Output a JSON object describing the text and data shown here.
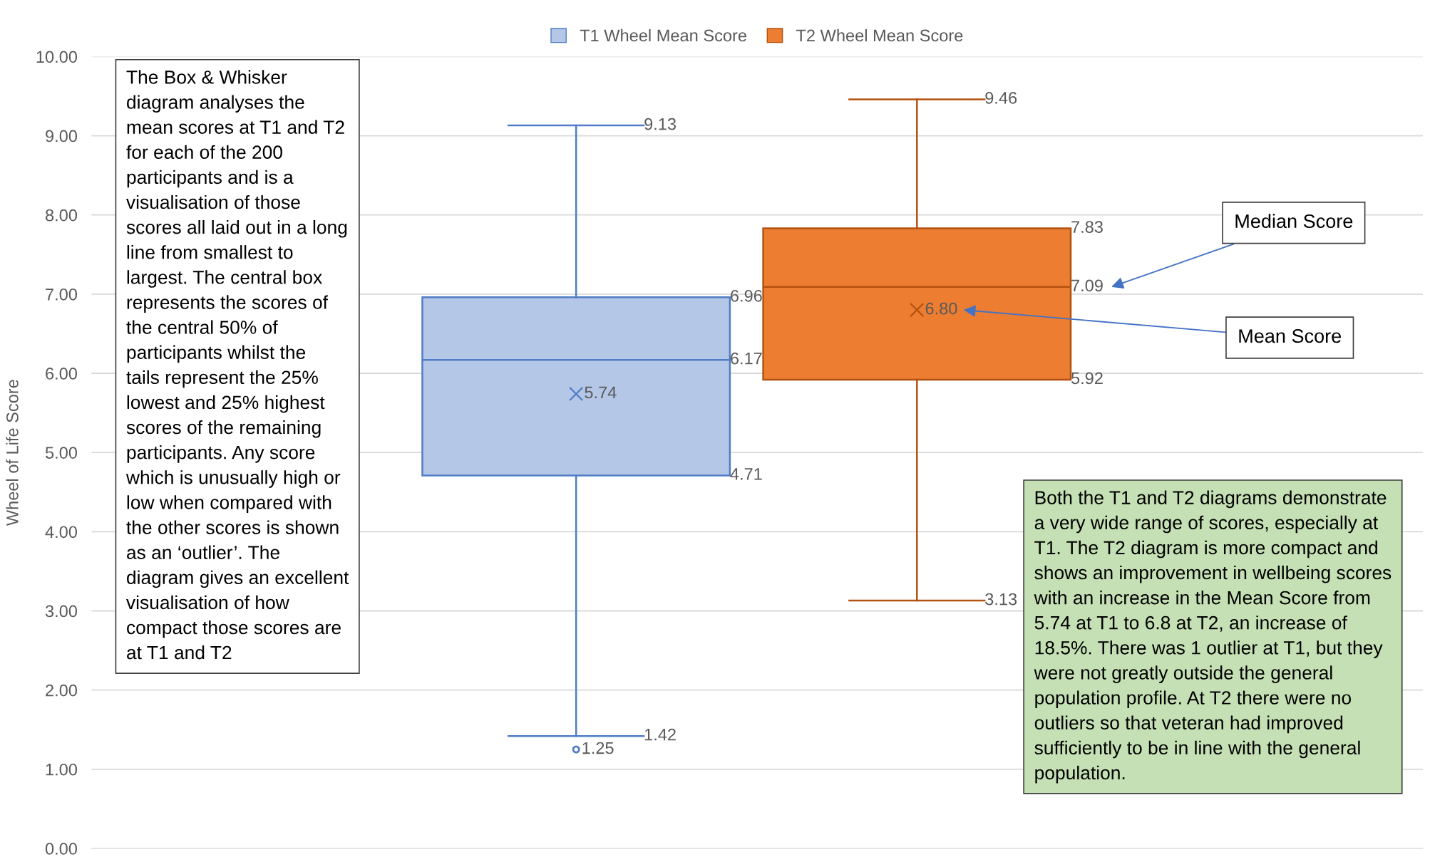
{
  "chart_data": {
    "type": "box",
    "ylabel": "Wheel of Life Score",
    "categories": [
      null
    ],
    "series": [
      {
        "name": "T1 Wheel Mean Score",
        "color": "#b4c7e7",
        "boxes": [
          {
            "low": 1.42,
            "q1": 4.71,
            "median": 6.17,
            "q3": 6.96,
            "high": 9.13,
            "mean": 5.74,
            "outliers": [
              1.25
            ]
          }
        ]
      },
      {
        "name": "T2 Wheel Mean Score",
        "color": "#ed7d31",
        "boxes": [
          {
            "low": 3.13,
            "q1": 5.92,
            "median": 7.09,
            "q3": 7.83,
            "high": 9.46,
            "mean": 6.8
          }
        ]
      }
    ],
    "ylim": [
      0,
      10
    ],
    "yticks": [
      {
        "value": 0,
        "label": "0.00"
      },
      {
        "value": 1,
        "label": "1.00"
      },
      {
        "value": 2,
        "label": "2.00"
      },
      {
        "value": 3,
        "label": "3.00"
      },
      {
        "value": 4,
        "label": "4.00"
      },
      {
        "value": 5,
        "label": "5.00"
      },
      {
        "value": 6,
        "label": "6.00"
      },
      {
        "value": 7,
        "label": "7.00"
      },
      {
        "value": 8,
        "label": "8.00"
      },
      {
        "value": 9,
        "label": "9.00"
      },
      {
        "value": 10,
        "label": "10.00"
      }
    ],
    "grid": "y",
    "legend": "top",
    "annotations": [
      "The Box & Whisker\ndiagram analyses the\nmean scores at T1 and T2\nfor each of the 200\nparticipants and is a\nvisualisation of those\nscores all laid out in a long\nline from smallest to\nlargest. The central box\nrepresents the scores of\nthe central 50% of\nparticipants whilst the\ntails represent the 25%\nlowest and 25% highest\nscores of the remaining\nparticipants. Any score\nwhich is unusually high or\nlow when compared with\nthe other scores is shown\nas an ‘outlier’. The\ndiagram gives an excellent\nvisualisation of how\ncompact those scores are\nat T1 and T2",
      "Both the T1 and T2 diagrams demonstrate\na very wide range of scores, especially at\nT1. The T2 diagram is more compact and\nshows an improvement in wellbeing scores\nwith an increase in the Mean Score from\n5.74 at T1 to 6.8 at T2, an increase of\n18.5%. There was 1 outlier at T1, but they\nwere not greatly outside the general\npopulation profile. At T2 there were no\noutliers so that veteran had improved\nsufficiently to be in line with the general\npopulation.",
      "Median Score",
      "Mean Score",
      "4.71",
      "6.17",
      "6.96",
      "1.42",
      "9.13",
      "5.74",
      "1.25",
      "5.92",
      "7.09",
      "7.83",
      "3.13",
      "9.46",
      "6.80"
    ]
  }
}
